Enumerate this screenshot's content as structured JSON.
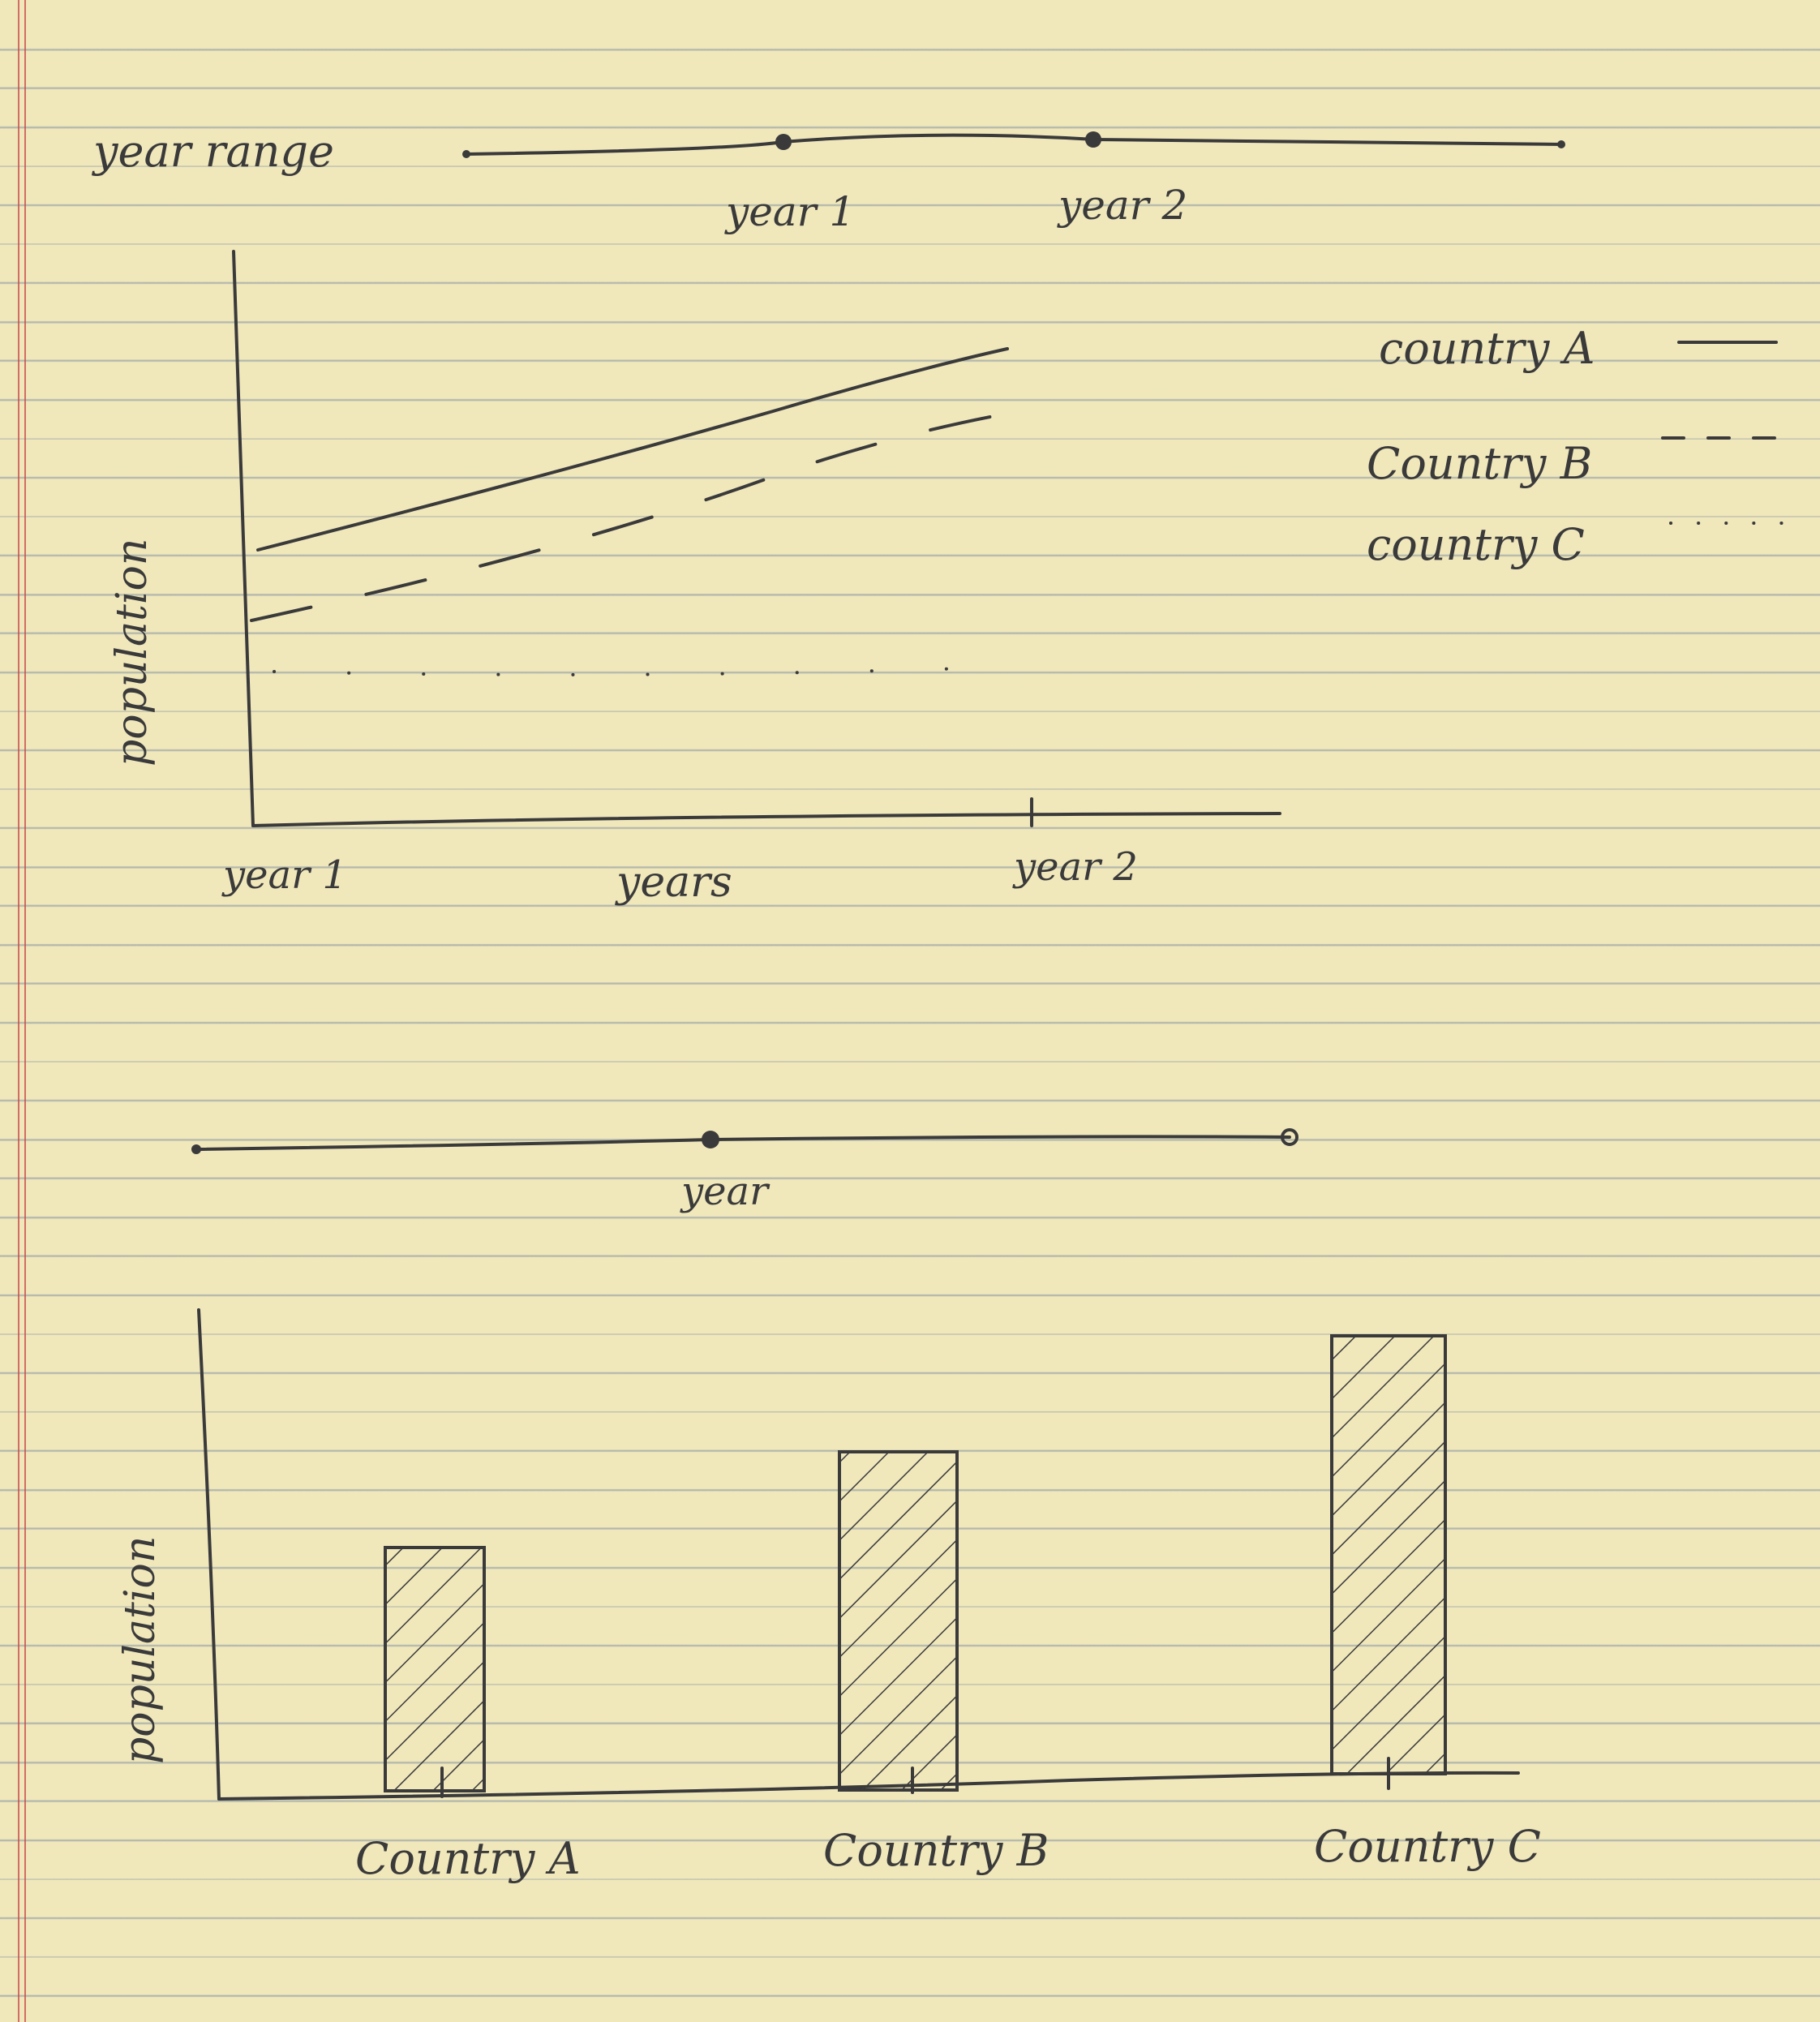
{
  "range_slider": {
    "label": "year range",
    "handle_1_label": "year 1",
    "handle_2_label": "year 2"
  },
  "line_chart": {
    "ylabel": "population",
    "xlabel": "years",
    "x_start_label": "year 1",
    "x_end_label": "year 2",
    "legend": [
      {
        "label": "country A",
        "style": "solid"
      },
      {
        "label": "Country B",
        "style": "dashed"
      },
      {
        "label": "country C",
        "style": "dotted"
      }
    ]
  },
  "year_slider": {
    "label": "year"
  },
  "bar_chart": {
    "ylabel": "population",
    "categories": [
      "Country A",
      "Country B",
      "Country C"
    ]
  },
  "colors": {
    "ink": "#3a3a3a",
    "paper": "#f0e7bb",
    "rule": "#6078a0",
    "margin": "#c84646"
  }
}
